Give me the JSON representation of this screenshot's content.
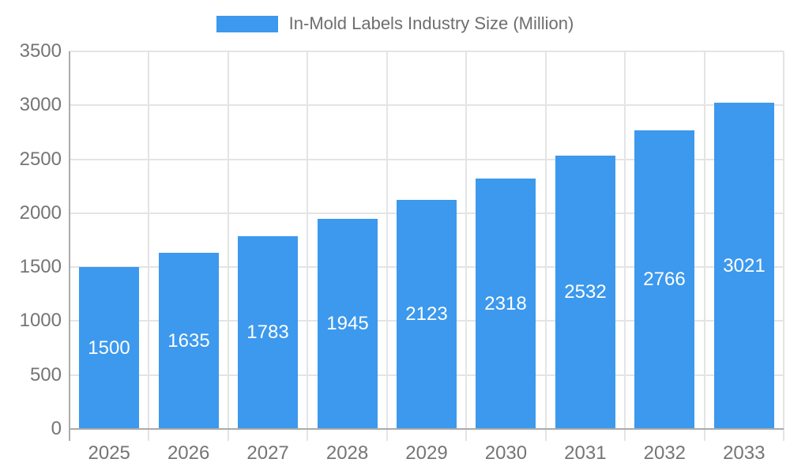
{
  "legend": {
    "label": "In-Mold Labels Industry Size (Million)"
  },
  "chart_data": {
    "type": "bar",
    "title": "In-Mold Labels Industry Size (Million)",
    "series_name": "In-Mold Labels Industry Size (Million)",
    "categories": [
      "2025",
      "2026",
      "2027",
      "2028",
      "2029",
      "2030",
      "2031",
      "2032",
      "2033"
    ],
    "values": [
      1500,
      1635,
      1783,
      1945,
      2123,
      2318,
      2532,
      2766,
      3021
    ],
    "value_labels": [
      "1500",
      "1635",
      "1783",
      "1945",
      "2123",
      "2318",
      "2532",
      "2766",
      "3021"
    ],
    "xlabel": "",
    "ylabel": "",
    "ylim": [
      0,
      3500
    ],
    "yticks": [
      0,
      500,
      1000,
      1500,
      2000,
      2500,
      3000,
      3500
    ],
    "grid": true,
    "legend_position": "top-center",
    "value_label_position": "inside-center"
  },
  "colors": {
    "bar": "#3C99ED",
    "grid": "#E4E4E4",
    "axis": "#ABABAB",
    "tick_text": "#757575",
    "legend_text": "#6E6E6E",
    "value_text": "#FFFFFF",
    "background": "#FFFFFF"
  }
}
